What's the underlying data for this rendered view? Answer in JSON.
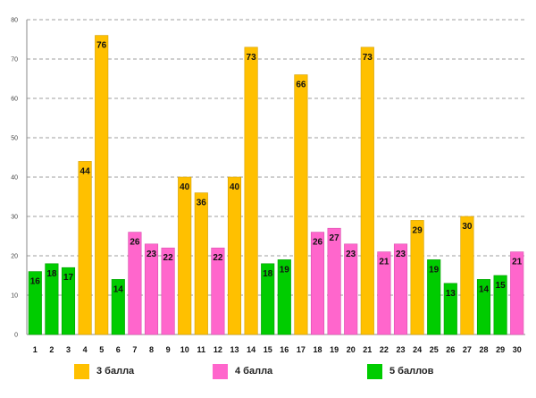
{
  "chart_data": {
    "type": "bar",
    "title": "",
    "xlabel": "",
    "ylabel": "",
    "ylim": [
      0,
      80
    ],
    "yticks": [
      0,
      10,
      20,
      30,
      40,
      50,
      60,
      70,
      80
    ],
    "grid": true,
    "categories": [
      "1",
      "2",
      "3",
      "4",
      "5",
      "6",
      "7",
      "8",
      "9",
      "10",
      "11",
      "12",
      "13",
      "14",
      "15",
      "16",
      "17",
      "18",
      "19",
      "20",
      "21",
      "22",
      "23",
      "24",
      "25",
      "26",
      "27",
      "28",
      "29",
      "30"
    ],
    "values": [
      16,
      18,
      17,
      44,
      76,
      14,
      26,
      23,
      22,
      40,
      36,
      22,
      40,
      73,
      18,
      19,
      66,
      26,
      27,
      23,
      73,
      21,
      23,
      29,
      19,
      13,
      30,
      14,
      15,
      21
    ],
    "groups": [
      "5 баллов",
      "5 баллов",
      "5 баллов",
      "3 балла",
      "3 балла",
      "5 баллов",
      "4 балла",
      "4 балла",
      "4 балла",
      "3 балла",
      "3 балла",
      "4 балла",
      "3 балла",
      "3 балла",
      "5 баллов",
      "5 баллов",
      "3 балла",
      "4 балла",
      "4 балла",
      "4 балла",
      "3 балла",
      "4 балла",
      "4 балла",
      "3 балла",
      "5 баллов",
      "5 баллов",
      "3 балла",
      "5 баллов",
      "5 баллов",
      "4 балла"
    ],
    "legend": [
      {
        "name": "3 балла",
        "color": "#FFC000"
      },
      {
        "name": "4 балла",
        "color": "#FF66CC"
      },
      {
        "name": "5 баллов",
        "color": "#00CC00"
      }
    ]
  }
}
